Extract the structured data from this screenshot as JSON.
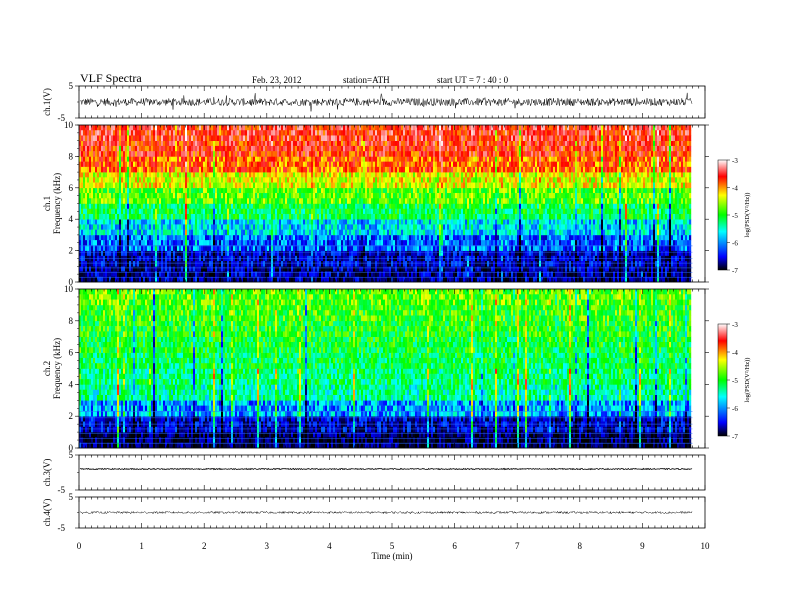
{
  "header": {
    "title": "VLF  Spectra",
    "date": "Feb. 23, 2012",
    "station": "station=ATH",
    "start_ut": "start  UT  =   7 : 40 : 0"
  },
  "chart_data": [
    {
      "type": "line",
      "panel": "ch1-waveform",
      "ylabel": "ch.1(V)",
      "ylim": [
        -5,
        5
      ],
      "y_ticks": [
        "5",
        "-5"
      ],
      "xlim": [
        0,
        10
      ],
      "x_extent_min": 9.8,
      "series": [
        {
          "name": "",
          "level": 0.0,
          "noise_amplitude": 1.2
        }
      ]
    },
    {
      "type": "heatmap",
      "panel": "ch1-spectrogram",
      "ylabel_channel": "ch.1",
      "ylabel": "Frequency  (kHz)",
      "ylim": [
        0,
        10
      ],
      "y_ticks": [
        "0",
        "2",
        "4",
        "6",
        "8",
        "10"
      ],
      "xlim": [
        0,
        9.8
      ],
      "log_psd_by_frequency_kHz": [
        {
          "f": 0.5,
          "value": -6.6
        },
        {
          "f": 1.5,
          "value": -6.5
        },
        {
          "f": 2.5,
          "value": -6.1
        },
        {
          "f": 3.5,
          "value": -5.7
        },
        {
          "f": 4.5,
          "value": -5.2
        },
        {
          "f": 5.5,
          "value": -4.8
        },
        {
          "f": 6.5,
          "value": -4.4
        },
        {
          "f": 7.5,
          "value": -3.9
        },
        {
          "f": 8.5,
          "value": -3.7
        },
        {
          "f": 9.5,
          "value": -3.6
        }
      ],
      "colorbar": {
        "label": "log(PSD(V²/Hz))",
        "ticks": [
          "-3",
          "-4",
          "-5",
          "-6",
          "-7"
        ],
        "range": [
          -7,
          -3
        ]
      }
    },
    {
      "type": "heatmap",
      "panel": "ch2-spectrogram",
      "ylabel_channel": "ch.2",
      "ylabel": "Frequency  (kHz)",
      "ylim": [
        0,
        10
      ],
      "y_ticks": [
        "0",
        "2",
        "4",
        "6",
        "8",
        "10"
      ],
      "xlim": [
        0,
        9.8
      ],
      "log_psd_by_frequency_kHz": [
        {
          "f": 0.5,
          "value": -6.8
        },
        {
          "f": 1.5,
          "value": -6.5
        },
        {
          "f": 2.5,
          "value": -5.9
        },
        {
          "f": 3.5,
          "value": -5.4
        },
        {
          "f": 4.5,
          "value": -5.3
        },
        {
          "f": 5.5,
          "value": -5.2
        },
        {
          "f": 6.5,
          "value": -5.1
        },
        {
          "f": 7.5,
          "value": -5.0
        },
        {
          "f": 8.5,
          "value": -4.9
        },
        {
          "f": 9.5,
          "value": -4.8
        }
      ],
      "colorbar": {
        "label": "log(PSD(V²/Hz))",
        "ticks": [
          "-3",
          "-4",
          "-5",
          "-6",
          "-7"
        ],
        "range": [
          -7,
          -3
        ]
      }
    },
    {
      "type": "line",
      "panel": "ch3-waveform",
      "ylabel": "ch.3(V)",
      "ylim": [
        -5,
        5
      ],
      "y_ticks": [
        "5",
        "-5"
      ],
      "xlim": [
        0,
        10
      ],
      "x_extent_min": 9.8,
      "series": [
        {
          "name": "",
          "level": 1.0,
          "noise_amplitude": 0.15
        }
      ]
    },
    {
      "type": "line",
      "panel": "ch4-waveform",
      "ylabel": "ch.4(V)",
      "ylim": [
        -5,
        5
      ],
      "y_ticks": [
        "5",
        "-5"
      ],
      "xlim": [
        0,
        10
      ],
      "x_extent_min": 9.8,
      "series": [
        {
          "name": "",
          "level": 0.0,
          "noise_amplitude": 0.35
        }
      ]
    }
  ],
  "x_axis": {
    "label": "Time  (min)",
    "ticks": [
      "0",
      "1",
      "2",
      "3",
      "4",
      "5",
      "6",
      "7",
      "8",
      "9",
      "10"
    ],
    "range": [
      0,
      10
    ]
  },
  "colors": {
    "colormap": [
      "#000000",
      "#0000ff",
      "#00ffff",
      "#00ff00",
      "#ffff00",
      "#ff0000",
      "#ffffff"
    ]
  }
}
